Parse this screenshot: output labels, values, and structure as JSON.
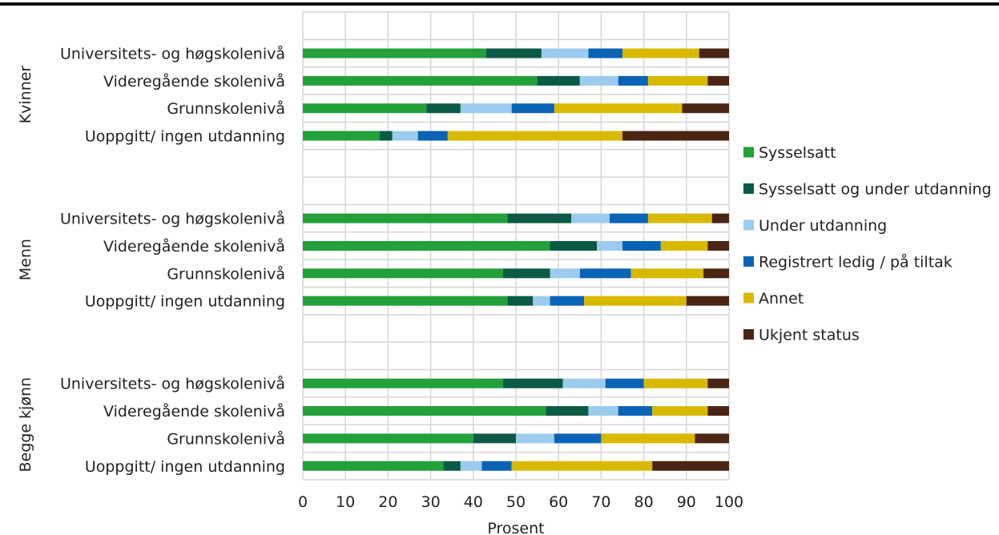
{
  "chart_data": {
    "type": "bar",
    "stacked": true,
    "orientation": "horizontal",
    "xlabel": "Prosent",
    "xlim": [
      0,
      100
    ],
    "xticks": [
      0,
      10,
      20,
      30,
      40,
      50,
      60,
      70,
      80,
      90,
      100
    ],
    "grid": true,
    "legend_position": "right",
    "series": [
      {
        "name": "Sysselsatt",
        "color": "#22a03a"
      },
      {
        "name": "Sysselsatt og under utdanning",
        "color": "#0b5a45"
      },
      {
        "name": "Under utdanning",
        "color": "#9ccbee"
      },
      {
        "name": "Registrert ledig / på tiltak",
        "color": "#0a63b5"
      },
      {
        "name": "Annet",
        "color": "#d9b900"
      },
      {
        "name": "Ukjent status",
        "color": "#4a2514"
      }
    ],
    "groups": [
      {
        "name": "Kvinner",
        "rows": [
          {
            "label": "Universitets- og høgskolenivå",
            "values": [
              43,
              13,
              11,
              8,
              18,
              7
            ]
          },
          {
            "label": "Videregående skolenivå",
            "values": [
              55,
              10,
              9,
              7,
              14,
              5
            ]
          },
          {
            "label": "Grunnskolenivå",
            "values": [
              29,
              8,
              12,
              10,
              30,
              11
            ]
          },
          {
            "label": "Uoppgitt/ ingen utdanning",
            "values": [
              18,
              3,
              6,
              7,
              41,
              25
            ]
          }
        ]
      },
      {
        "name": "Menn",
        "rows": [
          {
            "label": "Universitets- og høgskolenivå",
            "values": [
              48,
              15,
              9,
              9,
              15,
              4
            ]
          },
          {
            "label": "Videregående skolenivå",
            "values": [
              58,
              11,
              6,
              9,
              11,
              5
            ]
          },
          {
            "label": "Grunnskolenivå",
            "values": [
              47,
              11,
              7,
              12,
              17,
              6
            ]
          },
          {
            "label": "Uoppgitt/ ingen utdanning",
            "values": [
              48,
              6,
              4,
              8,
              24,
              10
            ]
          }
        ]
      },
      {
        "name": "Begge kjønn",
        "rows": [
          {
            "label": "Universitets- og høgskolenivå",
            "values": [
              47,
              14,
              10,
              9,
              15,
              5
            ]
          },
          {
            "label": "Videregående skolenivå",
            "values": [
              57,
              10,
              7,
              8,
              13,
              5
            ]
          },
          {
            "label": "Grunnskolenivå",
            "values": [
              40,
              10,
              9,
              11,
              22,
              8
            ]
          },
          {
            "label": "Uoppgitt/ ingen utdanning",
            "values": [
              33,
              4,
              5,
              7,
              33,
              18
            ]
          }
        ]
      }
    ]
  }
}
